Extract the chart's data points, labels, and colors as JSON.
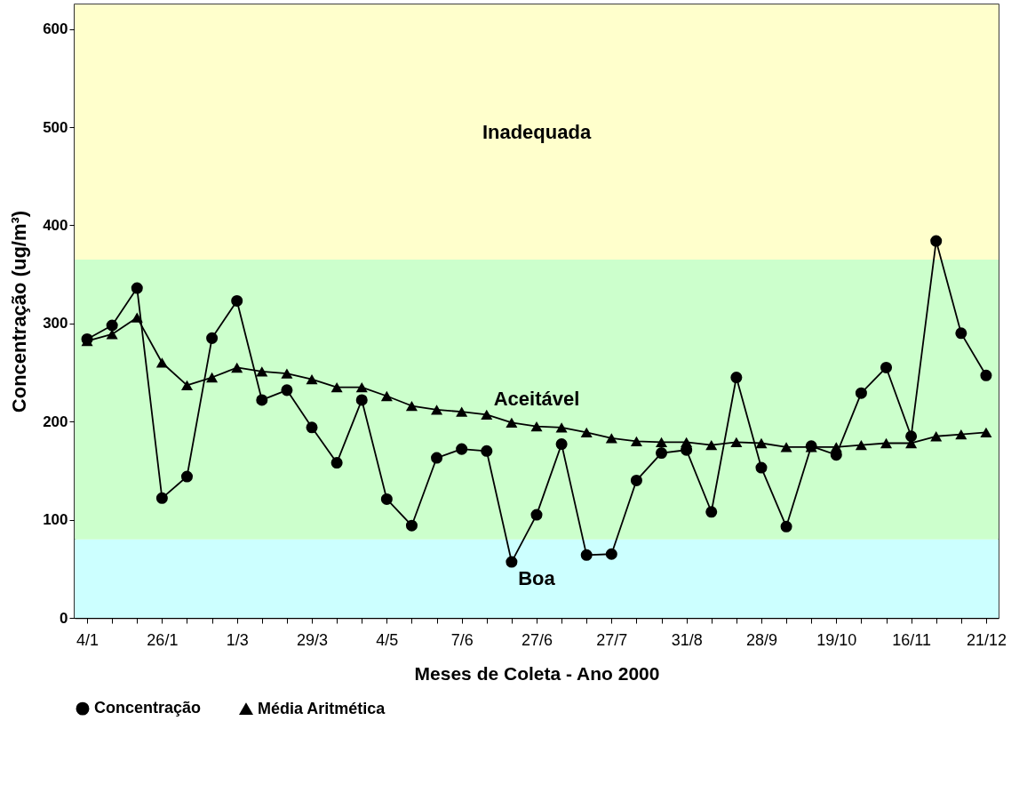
{
  "chart_data": {
    "type": "line",
    "xlabel": "Meses de Coleta - Ano 2000",
    "ylabel": "Concentração (ug/m³)",
    "categories": [
      "4/1",
      null,
      null,
      "26/1",
      null,
      null,
      "1/3",
      null,
      null,
      "29/3",
      null,
      null,
      "4/5",
      null,
      null,
      "7/6",
      null,
      null,
      "27/6",
      null,
      null,
      "27/7",
      null,
      null,
      "31/8",
      null,
      null,
      "28/9",
      null,
      null,
      "19/10",
      null,
      null,
      "16/11",
      null,
      null,
      "21/12"
    ],
    "series": [
      {
        "name": "Concentração",
        "color": "#000000",
        "marker": "circle",
        "values": [
          284,
          298,
          336,
          122,
          144,
          285,
          323,
          222,
          232,
          194,
          158,
          222,
          121,
          94,
          163,
          172,
          170,
          57,
          105,
          177,
          64,
          65,
          140,
          168,
          171,
          108,
          245,
          153,
          93,
          175,
          166,
          229,
          255,
          185,
          384,
          290,
          247
        ]
      },
      {
        "name": "Média Aritmética",
        "color": "#000000",
        "marker": "triangle",
        "values": [
          282,
          289,
          306,
          260,
          237,
          245,
          255,
          251,
          249,
          243,
          235,
          235,
          226,
          216,
          212,
          210,
          207,
          199,
          195,
          194,
          189,
          183,
          180,
          179,
          179,
          176,
          179,
          178,
          174,
          174,
          174,
          176,
          178,
          178,
          185,
          187,
          189
        ]
      }
    ],
    "ylim": [
      0,
      625
    ],
    "yticks": [
      0,
      100,
      200,
      300,
      400,
      500,
      600
    ],
    "bands": [
      {
        "axis": "y",
        "from": 0,
        "to": 80,
        "label": "Boa",
        "color": "#ccffff"
      },
      {
        "axis": "y",
        "from": 80,
        "to": 365,
        "label": "Aceitável",
        "color": "#ccffcc"
      },
      {
        "axis": "y",
        "from": 365,
        "to": 625,
        "label": "Inadequada",
        "color": "#ffffcc"
      }
    ],
    "grid": false,
    "legend": "bottom",
    "line_style": "solid"
  }
}
